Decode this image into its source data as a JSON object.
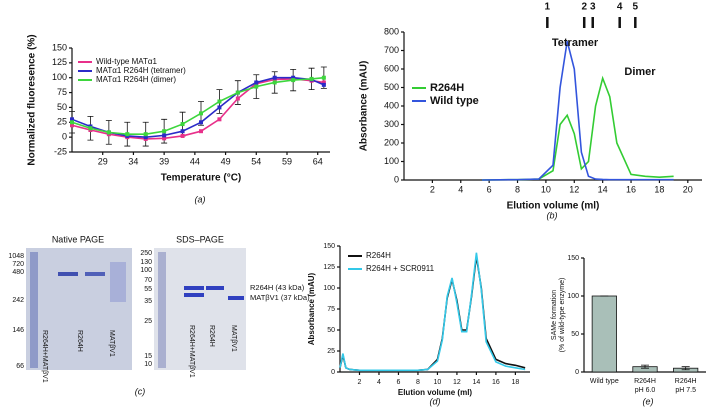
{
  "chart_data": [
    {
      "type": "line",
      "panel": "(a)",
      "xlabel": "Temperature (°C)",
      "ylabel": "Normalized fluoresence (%)",
      "x": [
        24,
        27,
        30,
        33,
        36,
        39,
        42,
        45,
        48,
        51,
        54,
        57,
        60,
        63,
        65
      ],
      "xlim": [
        24,
        66
      ],
      "xticks": [
        29,
        34,
        39,
        44,
        49,
        54,
        59,
        64
      ],
      "ylim": [
        -25,
        150
      ],
      "yticks": [
        -25,
        0,
        25,
        50,
        75,
        100,
        125,
        150
      ],
      "legend": "upper left",
      "markers": true,
      "series": [
        {
          "name": "Wild-type MATα1",
          "color": "#e8308a",
          "values": [
            20,
            12,
            5,
            0,
            -3,
            -2,
            2,
            10,
            30,
            65,
            90,
            97,
            98,
            95,
            92
          ]
        },
        {
          "name": "MATα1 R264H (tetramer)",
          "color": "#2b2bc8",
          "values": [
            30,
            18,
            8,
            2,
            0,
            3,
            10,
            25,
            50,
            75,
            92,
            100,
            100,
            97,
            88
          ]
        },
        {
          "name": "MATα1 R264H (dimer)",
          "color": "#3dd63d",
          "values": [
            25,
            15,
            8,
            5,
            5,
            10,
            22,
            40,
            60,
            75,
            85,
            92,
            96,
            98,
            100
          ],
          "errors": [
            18,
            20,
            20,
            20,
            20,
            20,
            20,
            20,
            20,
            20,
            20,
            18,
            18,
            18,
            18
          ]
        }
      ]
    },
    {
      "type": "line",
      "panel": "(b)",
      "xlabel": "Elution volume (ml)",
      "ylabel": "Absorbance (mAU)",
      "x": [
        5.5,
        8,
        9.5,
        10.5,
        11,
        11.5,
        12,
        12.5,
        13,
        13.5,
        14,
        14.5,
        15,
        16,
        17,
        18,
        19
      ],
      "xlim": [
        0,
        21
      ],
      "xticks": [
        2,
        4,
        6,
        8,
        10,
        12,
        14,
        16,
        18,
        20
      ],
      "ylim": [
        0,
        800
      ],
      "yticks": [
        0,
        100,
        200,
        300,
        400,
        500,
        600,
        700,
        800
      ],
      "legend": "center left",
      "annotations": [
        "Tetramer",
        "Dimer"
      ],
      "calibration": {
        "labels": [
          "1",
          "2",
          "3",
          "4",
          "5"
        ],
        "x": [
          10.1,
          12.7,
          13.3,
          15.2,
          16.3
        ]
      },
      "series": [
        {
          "name": "R264H",
          "color": "#33cc33",
          "values": [
            0,
            2,
            5,
            50,
            300,
            350,
            250,
            60,
            100,
            400,
            550,
            450,
            200,
            30,
            20,
            15,
            20
          ]
        },
        {
          "name": "Wild type",
          "color": "#3355dd",
          "values": [
            0,
            2,
            5,
            80,
            500,
            750,
            600,
            150,
            20,
            5,
            3,
            2,
            2,
            2,
            2,
            2,
            2
          ]
        }
      ]
    },
    {
      "type": "line",
      "panel": "(d)",
      "xlabel": "Elution volume (ml)",
      "ylabel": "Absorbance (mAU)",
      "x": [
        0,
        0.3,
        0.6,
        1,
        2,
        4,
        6,
        8,
        9,
        10,
        10.5,
        11,
        11.5,
        12,
        12.5,
        13,
        13.5,
        14,
        14.5,
        15,
        16,
        17,
        18,
        19
      ],
      "xlim": [
        0,
        19.5
      ],
      "xticks": [
        2,
        4,
        6,
        8,
        10,
        12,
        14,
        16,
        18
      ],
      "ylim": [
        0,
        150
      ],
      "yticks": [
        0,
        25,
        50,
        75,
        100,
        125,
        150
      ],
      "legend": "upper left",
      "series": [
        {
          "name": "R264H",
          "color": "#111111",
          "values": [
            5,
            20,
            5,
            3,
            2,
            2,
            2,
            2,
            3,
            15,
            40,
            88,
            110,
            85,
            50,
            50,
            90,
            138,
            100,
            40,
            15,
            10,
            8,
            5
          ]
        },
        {
          "name": "R264H + SCR0911",
          "color": "#33c8e8",
          "values": [
            5,
            22,
            5,
            3,
            2,
            2,
            2,
            2,
            3,
            13,
            38,
            90,
            112,
            82,
            48,
            48,
            92,
            142,
            98,
            36,
            12,
            7,
            5,
            3
          ]
        }
      ]
    },
    {
      "type": "bar",
      "panel": "(e)",
      "ylabel": [
        "SAMe formation",
        "(% of wild-type enzyme)"
      ],
      "categories": [
        [
          "Wild type"
        ],
        [
          "R264H",
          "pH 6.0"
        ],
        [
          "R264H",
          "pH 7.5"
        ]
      ],
      "values": [
        100,
        7,
        5
      ],
      "errors": [
        0,
        2,
        2
      ],
      "color": "#a9bfb8",
      "ylim": [
        0,
        150
      ],
      "yticks": [
        0,
        50,
        100,
        150
      ]
    }
  ],
  "gel": {
    "panel": "(c)",
    "native_title": "Native PAGE",
    "sds_title": "SDS–PAGE",
    "native_ladder": [
      "1048",
      "720",
      "480",
      "242",
      "146",
      "66"
    ],
    "sds_ladder": [
      "250",
      "130",
      "100",
      "70",
      "55",
      "35",
      "25",
      "15",
      "10"
    ],
    "native_lanes": [
      "R264H+MATβV1",
      "R264H",
      "MATβV1"
    ],
    "sds_lanes": [
      "R264H+MATβV1",
      "R264H",
      "MATβV1"
    ],
    "bands": [
      "R264H (43 kDa)",
      "MATβV1 (37 kDa)"
    ]
  }
}
